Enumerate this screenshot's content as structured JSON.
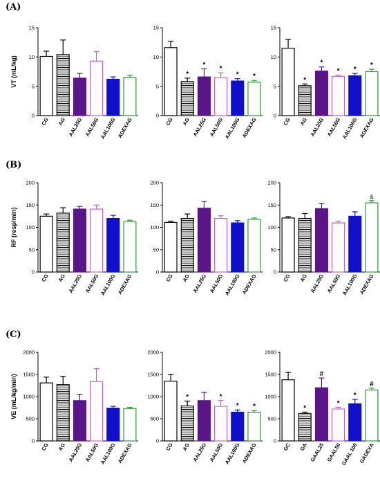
{
  "colors": {
    "CG": "#000000",
    "AG": "#000000",
    "AAL25G": "#5a1589",
    "AAL50G": "#c463c6",
    "AAL100G": "#1010c8",
    "ADEXAG": "#2b9a32"
  },
  "fills": [
    "none",
    "stripes",
    "solid",
    "none",
    "solid",
    "none"
  ],
  "chart_data": [
    {
      "type": "bar",
      "panel": "(A)",
      "ylabel": "VT (mL/kg)",
      "ylim": [
        0,
        15
      ],
      "yticks": [
        0,
        5,
        10,
        15
      ],
      "categories": [
        "CG",
        "AG",
        "AAL25G",
        "AAL50G",
        "AAL100G",
        "ADEXAG"
      ],
      "values": [
        10.1,
        10.4,
        6.4,
        9.3,
        6.2,
        6.5
      ],
      "errors": [
        0.9,
        2.5,
        0.8,
        1.6,
        0.4,
        0.4
      ],
      "marks": [
        "",
        "",
        "",
        "",
        "",
        ""
      ]
    },
    {
      "type": "bar",
      "ylabel": "",
      "ylim": [
        0,
        15
      ],
      "yticks": [
        0,
        5,
        10,
        15
      ],
      "categories": [
        "CG",
        "AG",
        "AAL25G",
        "AAL50G",
        "AAL100G",
        "ADEXAG"
      ],
      "values": [
        11.6,
        5.8,
        6.6,
        6.5,
        5.9,
        5.7
      ],
      "errors": [
        1.1,
        0.6,
        1.4,
        0.8,
        0.4,
        0.3
      ],
      "marks": [
        "",
        "*",
        "*",
        "*",
        "*",
        "*"
      ]
    },
    {
      "type": "bar",
      "ylabel": "",
      "ylim": [
        0,
        15
      ],
      "yticks": [
        0,
        5,
        10,
        15
      ],
      "categories": [
        "CG",
        "AG",
        "AAL25G",
        "AAL50G",
        "AAL100G",
        "ADEXAG"
      ],
      "values": [
        11.5,
        5.1,
        7.6,
        6.7,
        6.8,
        7.5
      ],
      "errors": [
        1.5,
        0.3,
        0.7,
        0.2,
        0.4,
        0.4
      ],
      "marks": [
        "",
        "*",
        "*",
        "*",
        "*",
        "*"
      ]
    },
    {
      "type": "bar",
      "panel": "(B)",
      "ylabel": "RF (resp/min)",
      "ylim": [
        0,
        200
      ],
      "yticks": [
        0,
        50,
        100,
        150,
        200
      ],
      "categories": [
        "CG",
        "AG",
        "AAL25G",
        "AAL50G",
        "AAL100G",
        "ADEXAG"
      ],
      "values": [
        125,
        132,
        141,
        141,
        120,
        113
      ],
      "errors": [
        5,
        12,
        6,
        9,
        7,
        3
      ],
      "marks": [
        "",
        "",
        "",
        "",
        "",
        ""
      ]
    },
    {
      "type": "bar",
      "ylabel": "",
      "ylim": [
        0,
        200
      ],
      "yticks": [
        0,
        50,
        100,
        150,
        200
      ],
      "categories": [
        "CG",
        "AG",
        "AAL25G",
        "AAL50G",
        "AAL100G",
        "ADEXAG"
      ],
      "values": [
        111,
        120,
        143,
        120,
        110,
        118
      ],
      "errors": [
        3,
        10,
        15,
        6,
        5,
        3
      ],
      "marks": [
        "",
        "",
        "",
        "",
        "",
        ""
      ]
    },
    {
      "type": "bar",
      "ylabel": "",
      "ylim": [
        0,
        200
      ],
      "yticks": [
        0,
        50,
        100,
        150,
        200
      ],
      "categories": [
        "CG",
        "AG",
        "AAL25G",
        "AAL50G",
        "AAL100G",
        "ADEXAG"
      ],
      "values": [
        121,
        120,
        142,
        110,
        125,
        155
      ],
      "errors": [
        3,
        11,
        12,
        4,
        10,
        5
      ],
      "marks": [
        "",
        "",
        "",
        "",
        "",
        "&"
      ]
    },
    {
      "type": "bar",
      "panel": "(C)",
      "ylabel": "VE (mL/kg/min)",
      "ylim": [
        0,
        2000
      ],
      "yticks": [
        0,
        500,
        1000,
        1500,
        2000
      ],
      "categories": [
        "CG",
        "AG",
        "AAL25G",
        "AAL50G",
        "AAL100G",
        "ADEXAG"
      ],
      "values": [
        1310,
        1270,
        910,
        1340,
        740,
        730
      ],
      "errors": [
        130,
        190,
        140,
        290,
        40,
        25
      ],
      "marks": [
        "",
        "",
        "",
        "",
        "",
        ""
      ]
    },
    {
      "type": "bar",
      "ylabel": "",
      "ylim": [
        0,
        2000
      ],
      "yticks": [
        0,
        500,
        1000,
        1500,
        2000
      ],
      "categories": [
        "CG",
        "AG",
        "AAL25G",
        "AAL50G",
        "AAL100G",
        "ADEXAG"
      ],
      "values": [
        1350,
        790,
        910,
        780,
        650,
        650
      ],
      "errors": [
        150,
        110,
        190,
        130,
        50,
        40
      ],
      "marks": [
        "",
        "*",
        "",
        "*",
        "*",
        "*"
      ]
    },
    {
      "type": "bar",
      "ylabel": "",
      "ylim": [
        0,
        2000
      ],
      "yticks": [
        0,
        500,
        1000,
        1500,
        2000
      ],
      "categories": [
        "GC",
        "GA",
        "GAAL25",
        "GAAL50",
        "GAAL 100",
        "GADEXA"
      ],
      "values": [
        1380,
        620,
        1200,
        720,
        840,
        1150
      ],
      "errors": [
        170,
        30,
        220,
        40,
        100,
        40
      ],
      "marks": [
        "",
        "*",
        "#",
        "*",
        "*",
        "#"
      ]
    }
  ]
}
